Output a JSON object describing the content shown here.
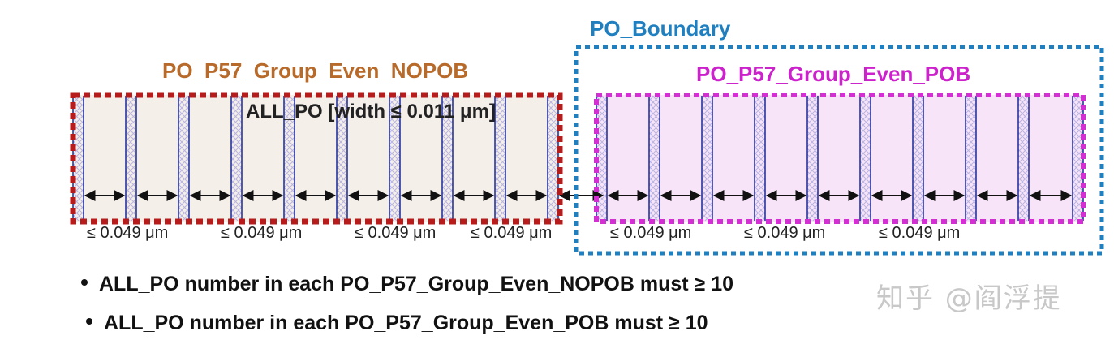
{
  "diagram": {
    "boundary_label": "PO_Boundary",
    "nopob_group_label": "PO_P57_Group_Even_NOPOB",
    "pob_group_label": "PO_P57_Group_Even_POB",
    "all_po_rule_label": "ALL_PO [width ≤ 0.011 μm]",
    "spacing_labels": [
      "≤ 0.049 μm",
      "≤ 0.049 μm",
      "≤ 0.049 μm",
      "≤ 0.049 μm",
      "≤ 0.049 μm",
      "≤ 0.049 μm",
      "≤ 0.049 μm"
    ],
    "colors": {
      "boundary": "#1f7fbf",
      "nopob": "#b71c1c",
      "nopob_title": "#b86a2a",
      "pob": "#d32fd3",
      "nopob_fill": "#f5efea",
      "pob_fill": "#f8e4f8",
      "po_line": "#1a2a9a",
      "hatch": "#b8b4e0"
    },
    "nopob_po_count": 10,
    "pob_po_count": 10
  },
  "rules": [
    "ALL_PO number in each PO_P57_Group_Even_NOPOB  must ≥ 10",
    "ALL_PO number in each PO_P57_Group_Even_POB  must ≥ 10"
  ],
  "watermark": "知乎 @阎浮提"
}
